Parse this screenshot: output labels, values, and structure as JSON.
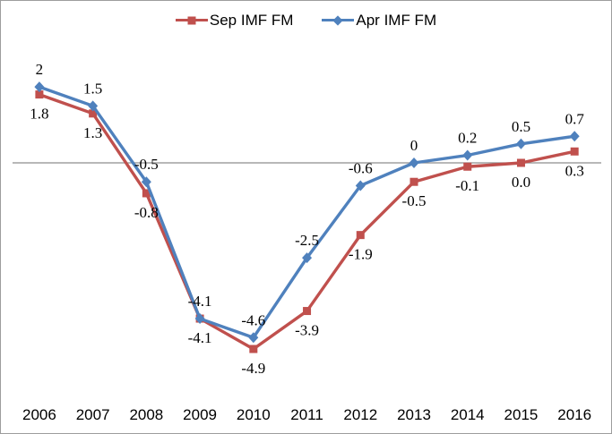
{
  "chart_data": {
    "type": "line",
    "title": "",
    "xlabel": "",
    "ylabel": "",
    "categories": [
      "2006",
      "2007",
      "2008",
      "2009",
      "2010",
      "2011",
      "2012",
      "2013",
      "2014",
      "2015",
      "2016"
    ],
    "series": [
      {
        "name": "Sep IMF FM",
        "color": "#c0504d",
        "marker": "square",
        "label_position": "below",
        "values": [
          1.8,
          1.3,
          -0.8,
          -4.1,
          -4.9,
          -3.9,
          -1.9,
          -0.5,
          -0.1,
          0.0,
          0.3
        ],
        "labels": [
          "1.8",
          "1.3",
          "-0.8",
          "-4.1",
          "-4.9",
          "-3.9",
          "-1.9",
          "-0.5",
          "-0.1",
          "0.0",
          "0.3"
        ]
      },
      {
        "name": "Apr IMF FM",
        "color": "#4f81bd",
        "marker": "diamond",
        "label_position": "above",
        "values": [
          2,
          1.5,
          -0.5,
          -4.1,
          -4.6,
          -2.5,
          -0.6,
          0,
          0.2,
          0.5,
          0.7
        ],
        "labels": [
          "2",
          "1.5",
          "-0.5",
          "-4.1",
          "-4.6",
          "-2.5",
          "-0.6",
          "0",
          "0.2",
          "0.5",
          "0.7"
        ]
      }
    ],
    "axis": {
      "zero_line": true,
      "zero_line_color": "#8e8e8e",
      "frame_color": "#9d9d9d",
      "ylim": [
        -6,
        2.6
      ],
      "grid": false,
      "legend_position": "top"
    }
  }
}
